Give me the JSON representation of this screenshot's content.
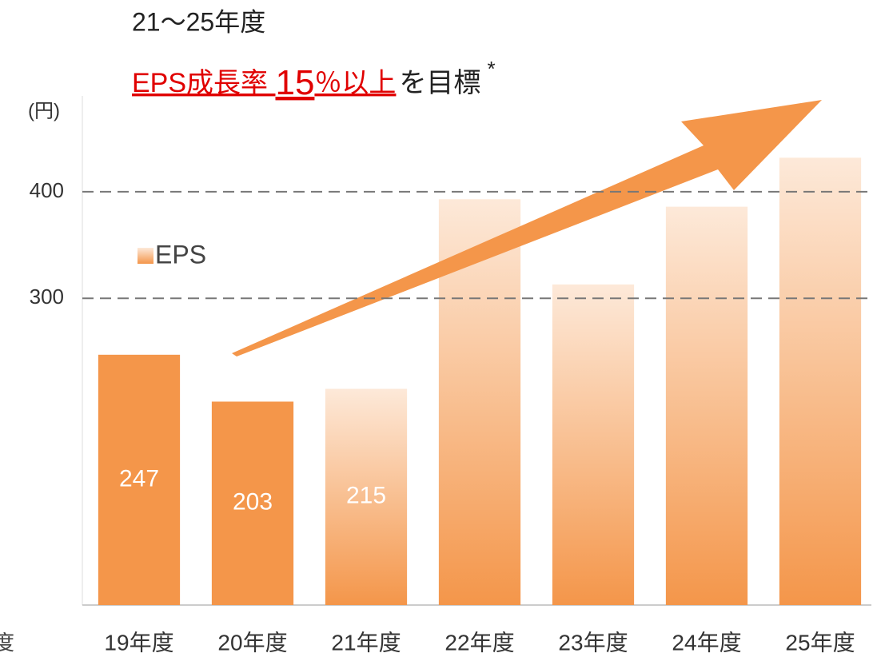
{
  "chart_data": {
    "type": "bar",
    "heading": "21～25年度",
    "title_parts": [
      "EPS成長率 ",
      "15",
      "％以上",
      "を目標",
      "*"
    ],
    "y_label": "(円)",
    "categories": [
      "19年度",
      "20年度",
      "21年度",
      "22年度",
      "23年度",
      "24年度",
      "25年度"
    ],
    "series": [
      {
        "name": "EPS",
        "color": "#f4964a",
        "values": [
          247,
          203,
          215,
          393,
          313,
          386,
          432
        ],
        "value_labels": [
          "247",
          "203",
          "215",
          null,
          null,
          null,
          null
        ],
        "bar_styles": [
          "solid",
          "solid",
          "gradient",
          "gradient",
          "gradient",
          "gradient",
          "gradient"
        ]
      }
    ],
    "ylim": [
      12,
      490
    ],
    "yticks": [
      300,
      400
    ],
    "grid": true,
    "edge_text": "度"
  }
}
